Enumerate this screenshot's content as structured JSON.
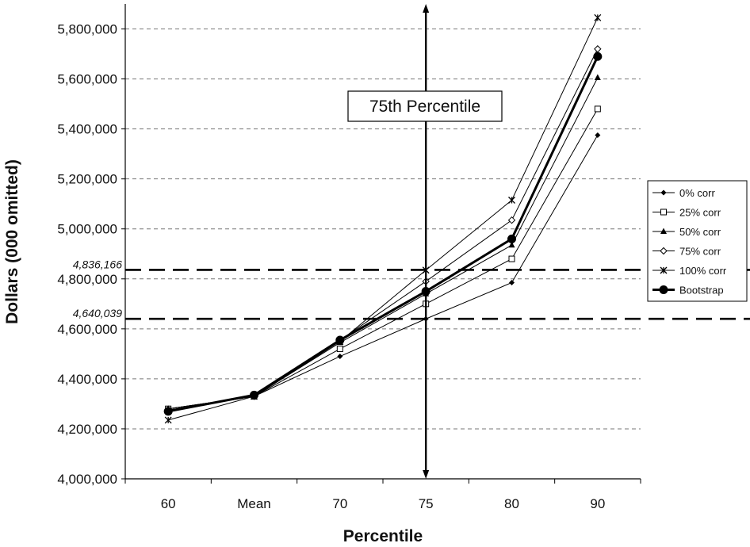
{
  "chart_data": {
    "type": "line",
    "xlabel": "Percentile",
    "ylabel": "Dollars (000 omitted)",
    "categories": [
      "60",
      "Mean",
      "70",
      "75",
      "80",
      "90"
    ],
    "ylim": [
      4000000,
      5900000
    ],
    "yticks": [
      4000000,
      4200000,
      4400000,
      4600000,
      4800000,
      5000000,
      5200000,
      5400000,
      5600000,
      5800000
    ],
    "ytick_labels": [
      "4,000,000",
      "4,200,000",
      "4,400,000",
      "4,600,000",
      "4,800,000",
      "5,000,000",
      "5,200,000",
      "5,400,000",
      "5,600,000",
      "5,800,000"
    ],
    "grid": "horizontal dashed",
    "legend_position": "right",
    "series": [
      {
        "name": "0% corr",
        "marker": "diamond-small",
        "values": [
          4280000,
          4330000,
          4490000,
          4640000,
          4785000,
          5375000
        ]
      },
      {
        "name": "25% corr",
        "marker": "square-open",
        "values": [
          4280000,
          4330000,
          4520000,
          4700000,
          4880000,
          5480000
        ]
      },
      {
        "name": "50% corr",
        "marker": "triangle",
        "values": [
          4280000,
          4330000,
          4545000,
          4740000,
          4935000,
          5605000
        ]
      },
      {
        "name": "75% corr",
        "marker": "diamond-open",
        "values": [
          4275000,
          4330000,
          4555000,
          4790000,
          5035000,
          5720000
        ]
      },
      {
        "name": "100% corr",
        "marker": "star",
        "values": [
          4235000,
          4330000,
          4550000,
          4835000,
          5115000,
          5845000
        ]
      },
      {
        "name": "Bootstrap",
        "marker": "circle",
        "values": [
          4270000,
          4335000,
          4555000,
          4750000,
          4960000,
          5690000
        ]
      }
    ],
    "reference_lines": [
      {
        "value": 4836166,
        "label": "4,836,166"
      },
      {
        "value": 4640039,
        "label": "4,640,039"
      }
    ],
    "vertical_line": {
      "category": "75"
    },
    "annotation": "75th Percentile"
  }
}
